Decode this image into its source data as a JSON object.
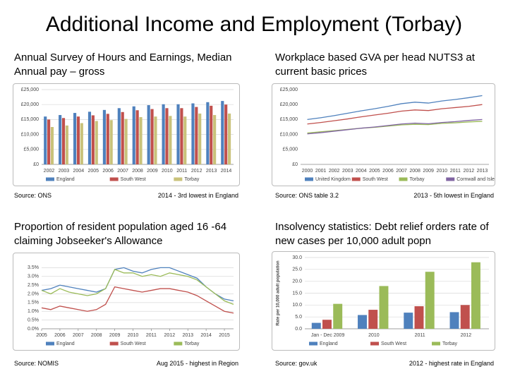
{
  "title": "Additional Income and Employment (Torbay)",
  "chart_data": [
    {
      "type": "bar",
      "title": "Annual Survey of Hours and Earnings, Median Annual pay – gross",
      "source": "Source: ONS",
      "note": "2014 - 3rd lowest in England",
      "categories": [
        "2002",
        "2003",
        "2004",
        "2005",
        "2006",
        "2007",
        "2008",
        "2009",
        "2010",
        "2011",
        "2012",
        "2013",
        "2014"
      ],
      "series": [
        {
          "name": "England",
          "color": "#4f81bd",
          "values": [
            16000,
            16500,
            17200,
            17600,
            18200,
            18800,
            19400,
            19800,
            20100,
            20100,
            20400,
            20800,
            21200
          ]
        },
        {
          "name": "South West",
          "color": "#c0504d",
          "values": [
            15000,
            15500,
            16000,
            16400,
            16900,
            17500,
            18100,
            18500,
            18800,
            18800,
            19200,
            19600,
            20000
          ]
        },
        {
          "name": "Torbay",
          "color": "#c9c27a",
          "values": [
            12500,
            13000,
            13800,
            14500,
            14800,
            15200,
            15800,
            16000,
            16200,
            16000,
            17000,
            16500,
            17000
          ]
        }
      ],
      "ylim": [
        0,
        25000
      ],
      "yticks": [
        {
          "value": 0,
          "label": "£0"
        },
        {
          "value": 5000,
          "label": "£5,000"
        },
        {
          "value": 10000,
          "label": "£10,000"
        },
        {
          "value": 15000,
          "label": "£15,000"
        },
        {
          "value": 20000,
          "label": "£20,000"
        },
        {
          "value": 25000,
          "label": "£25,000"
        }
      ],
      "grid": true
    },
    {
      "type": "line",
      "title": "Workplace based GVA per head NUTS3 at current basic prices",
      "source": "Source: ONS table 3.2",
      "note": "2013 - 5th lowest in England",
      "categories": [
        "2000",
        "2001",
        "2002",
        "2003",
        "2004",
        "2005",
        "2006",
        "2007",
        "2008",
        "2009",
        "2010",
        "2011",
        "2012",
        "2013"
      ],
      "series": [
        {
          "name": "United Kingdom",
          "color": "#4f81bd",
          "values": [
            15000,
            15600,
            16300,
            17100,
            17900,
            18600,
            19400,
            20300,
            20800,
            20500,
            21200,
            21700,
            22300,
            23000
          ]
        },
        {
          "name": "South West",
          "color": "#c0504d",
          "values": [
            13500,
            14000,
            14600,
            15200,
            15900,
            16500,
            17100,
            17800,
            18200,
            18000,
            18600,
            19000,
            19400,
            20000
          ]
        },
        {
          "name": "Torbay",
          "color": "#9bbb59",
          "values": [
            10500,
            10900,
            11300,
            11700,
            12100,
            12400,
            12800,
            13200,
            13400,
            13300,
            13700,
            13900,
            14200,
            14400
          ]
        },
        {
          "name": "Cornwall and Isles of Scilly",
          "color": "#8064a2",
          "values": [
            10200,
            10600,
            11100,
            11600,
            12100,
            12500,
            13000,
            13500,
            13800,
            13600,
            14000,
            14300,
            14700,
            15000
          ]
        }
      ],
      "ylim": [
        0,
        25000
      ],
      "yticks": [
        {
          "value": 0,
          "label": "£0"
        },
        {
          "value": 5000,
          "label": "£5,000"
        },
        {
          "value": 10000,
          "label": "£10,000"
        },
        {
          "value": 15000,
          "label": "£15,000"
        },
        {
          "value": 20000,
          "label": "£20,000"
        },
        {
          "value": 25000,
          "label": "£25,000"
        }
      ],
      "grid": false
    },
    {
      "type": "line",
      "title": "Proportion of resident population aged 16 -64 claiming Jobseeker's Allowance",
      "source": "Source: NOMIS",
      "note": "Aug 2015 - highest in Region",
      "x": [
        2005,
        2005.5,
        2006,
        2006.5,
        2007,
        2007.5,
        2008,
        2008.5,
        2009,
        2009.5,
        2010,
        2010.5,
        2011,
        2011.5,
        2012,
        2012.5,
        2013,
        2013.5,
        2014,
        2014.5,
        2015,
        2015.5
      ],
      "series": [
        {
          "name": "England",
          "color": "#4f81bd",
          "values": [
            2.2,
            2.3,
            2.5,
            2.4,
            2.3,
            2.2,
            2.1,
            2.3,
            3.4,
            3.5,
            3.3,
            3.2,
            3.4,
            3.5,
            3.5,
            3.3,
            3.1,
            2.9,
            2.4,
            2.0,
            1.7,
            1.6
          ]
        },
        {
          "name": "South West",
          "color": "#c0504d",
          "values": [
            1.2,
            1.1,
            1.3,
            1.2,
            1.1,
            1.0,
            1.1,
            1.4,
            2.4,
            2.3,
            2.2,
            2.1,
            2.2,
            2.3,
            2.3,
            2.2,
            2.1,
            1.9,
            1.6,
            1.3,
            1.0,
            0.9
          ]
        },
        {
          "name": "Torbay",
          "color": "#9bbb59",
          "values": [
            2.2,
            2.0,
            2.3,
            2.1,
            2.0,
            1.9,
            2.0,
            2.3,
            3.4,
            3.2,
            3.2,
            3.0,
            3.1,
            3.0,
            3.2,
            3.1,
            3.0,
            2.8,
            2.4,
            2.0,
            1.6,
            1.4
          ]
        }
      ],
      "xlim": [
        2005,
        2015.5
      ],
      "xticks": [
        2005,
        2006,
        2007,
        2008,
        2009,
        2010,
        2011,
        2012,
        2013,
        2014,
        2015
      ],
      "ylim": [
        0,
        4
      ],
      "yticks": [
        {
          "value": 0,
          "label": "0.0%"
        },
        {
          "value": 0.5,
          "label": "0.5%"
        },
        {
          "value": 1,
          "label": "1.0%"
        },
        {
          "value": 1.5,
          "label": "1.5%"
        },
        {
          "value": 2,
          "label": "2.0%"
        },
        {
          "value": 2.5,
          "label": "2.5%"
        },
        {
          "value": 3,
          "label": "3.0%"
        },
        {
          "value": 3.5,
          "label": "3.5%"
        }
      ],
      "grid": true
    },
    {
      "type": "bar",
      "title": "Insolvency statistics: Debt relief orders rate of new cases per 10,000 adult popn",
      "source": "Source: gov.uk",
      "note": "2012 - highest rate in England",
      "y_label": "Rate per 10,000 adult population",
      "categories": [
        "Jan - Dec 2009",
        "2010",
        "2011",
        "2012"
      ],
      "series": [
        {
          "name": "England",
          "color": "#4f81bd",
          "values": [
            2.5,
            5.8,
            6.8,
            7.0
          ]
        },
        {
          "name": "South West",
          "color": "#c0504d",
          "values": [
            3.8,
            8.0,
            9.5,
            10.0
          ]
        },
        {
          "name": "Torbay",
          "color": "#9bbb59",
          "values": [
            10.5,
            18.0,
            24.0,
            28.0
          ]
        }
      ],
      "ylim": [
        0,
        30
      ],
      "yticks": [
        {
          "value": 0,
          "label": "0.0"
        },
        {
          "value": 5,
          "label": "5.0"
        },
        {
          "value": 10,
          "label": "10.0"
        },
        {
          "value": 15,
          "label": "15.0"
        },
        {
          "value": 20,
          "label": "20.0"
        },
        {
          "value": 25,
          "label": "25.0"
        },
        {
          "value": 30,
          "label": "30.0"
        }
      ],
      "grid": true
    }
  ]
}
